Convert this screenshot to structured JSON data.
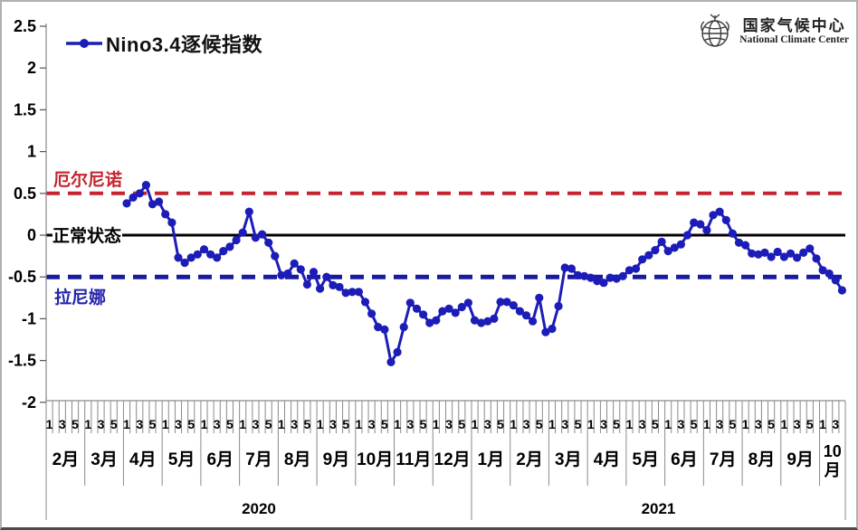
{
  "legend": {
    "label": "Nino3.4逐候指数"
  },
  "logo": {
    "icon": "globe-icon",
    "cn": "国家气候中心",
    "en": "National Climate Center"
  },
  "annotations": {
    "el_nino": "厄尔尼诺",
    "normal": "正常状态",
    "la_nina": "拉尼娜"
  },
  "colors": {
    "series": "#1c1cb8",
    "el_nino_line": "#c42430",
    "zero_line": "#000000",
    "la_nina_line": "#1a1aa0",
    "axis": "#8a8a8a",
    "tick_text": "#000000"
  },
  "chart_data": {
    "type": "line",
    "title": "Nino3.4逐候指数",
    "xlabel": "",
    "ylabel": "",
    "ylim": [
      -2,
      2.5
    ],
    "grid": false,
    "legend_position": "top-left",
    "y_ticks": [
      {
        "v": 2.5,
        "label": "2.5"
      },
      {
        "v": 2,
        "label": "2"
      },
      {
        "v": 1.5,
        "label": "1.5"
      },
      {
        "v": 1,
        "label": "1"
      },
      {
        "v": 0.5,
        "label": "0.5"
      },
      {
        "v": 0,
        "label": "0"
      },
      {
        "v": -0.5,
        "label": "-0.5"
      },
      {
        "v": -1,
        "label": "-1"
      },
      {
        "v": -1.5,
        "label": "-1.5"
      },
      {
        "v": -2,
        "label": "-2"
      }
    ],
    "reference_lines": [
      {
        "value": 0.5,
        "label": "厄尔尼诺",
        "style": "dashed",
        "color": "#c42430"
      },
      {
        "value": 0,
        "label": "正常状态",
        "style": "solid",
        "color": "#000000"
      },
      {
        "value": -0.5,
        "label": "拉尼娜",
        "style": "dashed",
        "color": "#1a1aa0"
      }
    ],
    "x_axis": {
      "pentad_tick_labels": [
        "1",
        "3",
        "5"
      ],
      "years": [
        {
          "label": "2020",
          "months": [
            {
              "label": "2月",
              "pentads": 6
            },
            {
              "label": "3月",
              "pentads": 6
            },
            {
              "label": "4月",
              "pentads": 6
            },
            {
              "label": "5月",
              "pentads": 6
            },
            {
              "label": "6月",
              "pentads": 6
            },
            {
              "label": "7月",
              "pentads": 6
            },
            {
              "label": "8月",
              "pentads": 6
            },
            {
              "label": "9月",
              "pentads": 6
            },
            {
              "label": "10月",
              "pentads": 6
            },
            {
              "label": "11月",
              "pentads": 6
            },
            {
              "label": "12月",
              "pentads": 6
            }
          ]
        },
        {
          "label": "2021",
          "months": [
            {
              "label": "1月",
              "pentads": 6
            },
            {
              "label": "2月",
              "pentads": 6
            },
            {
              "label": "3月",
              "pentads": 6
            },
            {
              "label": "4月",
              "pentads": 6
            },
            {
              "label": "5月",
              "pentads": 6
            },
            {
              "label": "6月",
              "pentads": 6
            },
            {
              "label": "7月",
              "pentads": 6
            },
            {
              "label": "8月",
              "pentads": 6
            },
            {
              "label": "9月",
              "pentads": 6
            },
            {
              "label": "10月",
              "pentads": 4
            }
          ]
        }
      ]
    },
    "series": [
      {
        "name": "Nino3.4逐候指数",
        "color": "#1c1cb8",
        "start": {
          "year": "2020",
          "month": "4月",
          "pentad": 1
        },
        "values_by_month": [
          {
            "year": "2020",
            "month": "4月",
            "values": [
              0.38,
              0.45,
              0.5,
              0.6,
              0.37,
              0.4
            ]
          },
          {
            "year": "2020",
            "month": "5月",
            "values": [
              0.25,
              0.15,
              -0.27,
              -0.33,
              -0.27,
              -0.23
            ]
          },
          {
            "year": "2020",
            "month": "6月",
            "values": [
              -0.17,
              -0.23,
              -0.27,
              -0.19,
              -0.14,
              -0.06
            ]
          },
          {
            "year": "2020",
            "month": "7月",
            "values": [
              0.03,
              0.28,
              -0.03,
              0.01,
              -0.09,
              -0.25
            ]
          },
          {
            "year": "2020",
            "month": "8月",
            "values": [
              -0.48,
              -0.46,
              -0.34,
              -0.41,
              -0.59,
              -0.44
            ]
          },
          {
            "year": "2020",
            "month": "9月",
            "values": [
              -0.64,
              -0.5,
              -0.6,
              -0.62,
              -0.69,
              -0.68
            ]
          },
          {
            "year": "2020",
            "month": "10月",
            "values": [
              -0.68,
              -0.8,
              -0.94,
              -1.1,
              -1.13,
              -1.52
            ]
          },
          {
            "year": "2020",
            "month": "11月",
            "values": [
              -1.4,
              -1.1,
              -0.81,
              -0.88,
              -0.95,
              -1.05
            ]
          },
          {
            "year": "2020",
            "month": "12月",
            "values": [
              -1.02,
              -0.91,
              -0.88,
              -0.93,
              -0.86,
              -0.81
            ]
          },
          {
            "year": "2021",
            "month": "1月",
            "values": [
              -1.02,
              -1.05,
              -1.03,
              -1.0,
              -0.8,
              -0.8
            ]
          },
          {
            "year": "2021",
            "month": "2月",
            "values": [
              -0.84,
              -0.91,
              -0.96,
              -1.03,
              -0.75,
              -1.16
            ]
          },
          {
            "year": "2021",
            "month": "3月",
            "values": [
              -1.12,
              -0.85,
              -0.39,
              -0.4,
              -0.48,
              -0.49
            ]
          },
          {
            "year": "2021",
            "month": "4月",
            "values": [
              -0.51,
              -0.55,
              -0.57,
              -0.51,
              -0.52,
              -0.49
            ]
          },
          {
            "year": "2021",
            "month": "5月",
            "values": [
              -0.42,
              -0.4,
              -0.29,
              -0.24,
              -0.18,
              -0.08
            ]
          },
          {
            "year": "2021",
            "month": "6月",
            "values": [
              -0.19,
              -0.15,
              -0.11,
              0.0,
              0.15,
              0.13
            ]
          },
          {
            "year": "2021",
            "month": "7月",
            "values": [
              0.06,
              0.24,
              0.28,
              0.18,
              0.02,
              -0.09
            ]
          },
          {
            "year": "2021",
            "month": "8月",
            "values": [
              -0.12,
              -0.22,
              -0.23,
              -0.21,
              -0.26,
              -0.2
            ]
          },
          {
            "year": "2021",
            "month": "9月",
            "values": [
              -0.26,
              -0.22,
              -0.27,
              -0.21,
              -0.16,
              -0.28
            ]
          },
          {
            "year": "2021",
            "month": "10月",
            "values": [
              -0.42,
              -0.46,
              -0.54,
              -0.66
            ]
          }
        ]
      }
    ]
  }
}
